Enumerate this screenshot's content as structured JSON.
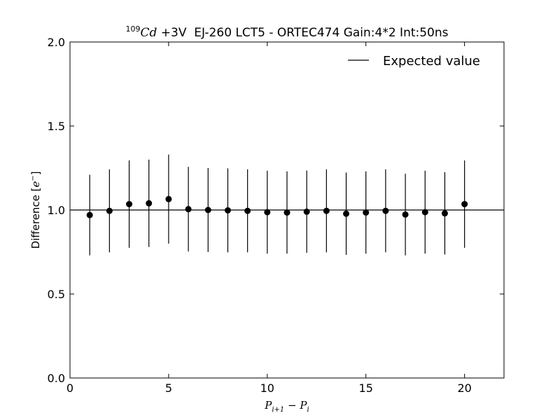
{
  "chart_data": {
    "type": "scatter",
    "title": {
      "superscript": "109",
      "isotope": "Cd",
      "rest": " +3V  EJ-260 LCT5 - ORTEC474 Gain:4*2 Int:50ns"
    },
    "xlabel": "P",
    "xlabel_sub1": "i+1",
    "xlabel_mid": " − P",
    "xlabel_sub2": "i",
    "ylabel": "Difference [",
    "ylabel_math": "e",
    "ylabel_sup": "−",
    "ylabel_close": "]",
    "xlim": [
      0,
      22
    ],
    "ylim": [
      0,
      2.0
    ],
    "xticks": [
      0,
      5,
      10,
      15,
      20
    ],
    "xtick_labels": [
      "0",
      "5",
      "10",
      "15",
      "20"
    ],
    "yticks": [
      0,
      0.5,
      1.0,
      1.5,
      2.0
    ],
    "ytick_labels": [
      "0.0",
      "0.5",
      "1.0",
      "1.5",
      "2.0"
    ],
    "grid": false,
    "legend_position": "top-right",
    "legend": [
      "Expected value"
    ],
    "reference_line": {
      "y": 1.0,
      "name": "Expected value",
      "color": "#000000"
    },
    "series": [
      {
        "color": "#000000",
        "x": [
          1,
          2,
          3,
          4,
          5,
          6,
          7,
          8,
          9,
          10,
          11,
          12,
          13,
          14,
          15,
          16,
          17,
          18,
          19,
          20
        ],
        "y": [
          0.97,
          0.995,
          1.035,
          1.04,
          1.065,
          1.005,
          1.0,
          0.998,
          0.995,
          0.987,
          0.985,
          0.99,
          0.995,
          0.978,
          0.985,
          0.995,
          0.973,
          0.987,
          0.98,
          1.035
        ],
        "err": [
          0.24,
          0.247,
          0.26,
          0.26,
          0.265,
          0.252,
          0.25,
          0.25,
          0.247,
          0.247,
          0.245,
          0.245,
          0.247,
          0.245,
          0.245,
          0.247,
          0.243,
          0.247,
          0.245,
          0.26
        ]
      }
    ]
  }
}
